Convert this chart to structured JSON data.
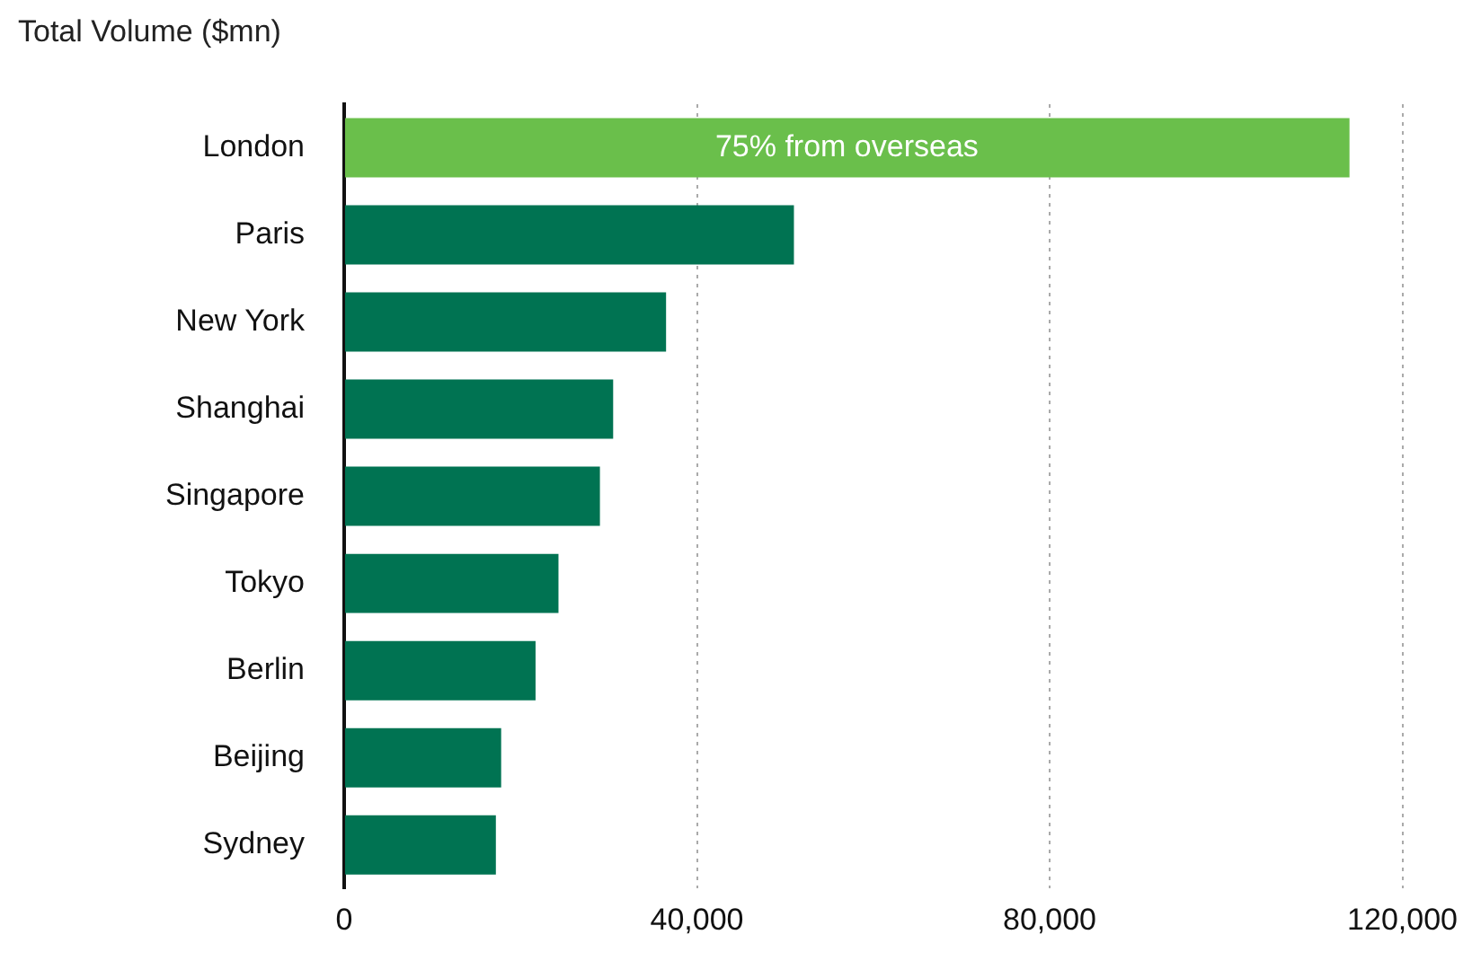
{
  "chart_data": {
    "type": "bar",
    "orientation": "horizontal",
    "title": "Total Volume ($mn)",
    "categories": [
      "London",
      "Paris",
      "New York",
      "Shanghai",
      "Singapore",
      "Tokyo",
      "Berlin",
      "Beijing",
      "Sydney"
    ],
    "values": [
      114000,
      51000,
      36500,
      30500,
      29000,
      24300,
      21700,
      17800,
      17200
    ],
    "colors": [
      "#6abf4b",
      "#007352",
      "#007352",
      "#007352",
      "#007352",
      "#007352",
      "#007352",
      "#007352",
      "#007352"
    ],
    "xlim": [
      0,
      120000
    ],
    "xticks": [
      0,
      {
        "value": 40000,
        "label": "40,000"
      },
      {
        "value": 80000,
        "label": "80,000"
      },
      {
        "value": 120000,
        "label": "120,000"
      }
    ],
    "grid": "x",
    "annotations": [
      {
        "text": "75% from overseas",
        "x": 57000,
        "y": "London"
      }
    ]
  }
}
